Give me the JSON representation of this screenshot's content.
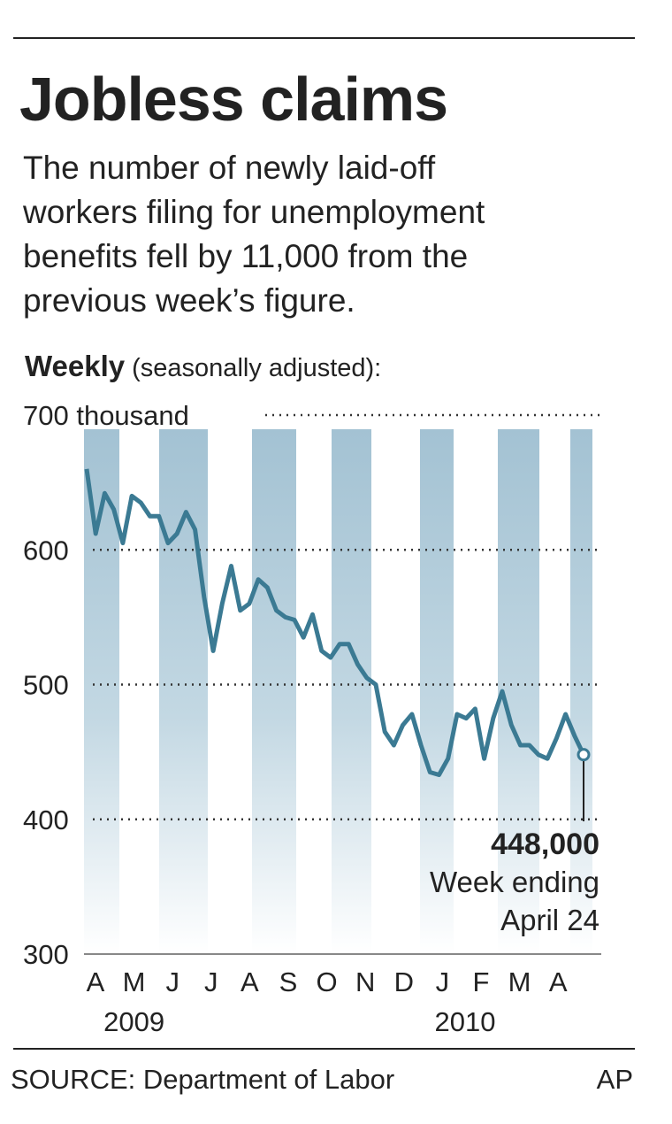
{
  "chart_data": {
    "type": "line",
    "title": "Jobless claims",
    "subtitle": [
      "The number of newly laid-off",
      "workers filing for unemployment",
      "benefits fell by 11,000 from the",
      "previous week’s figure."
    ],
    "ylabel": "Weekly",
    "ylabel_note": "(seasonally adjusted):",
    "months": [
      "A",
      "M",
      "J",
      "J",
      "A",
      "S",
      "O",
      "N",
      "D",
      "J",
      "F",
      "M",
      "A"
    ],
    "years": [
      "2009",
      "2010"
    ],
    "color": "#3b7a93",
    "values": [
      660,
      612,
      642,
      630,
      605,
      640,
      635,
      625,
      625,
      605,
      612,
      628,
      615,
      565,
      525,
      560,
      588,
      555,
      560,
      578,
      572,
      555,
      550,
      548,
      535,
      552,
      525,
      520,
      530,
      530,
      515,
      505,
      500,
      465,
      455,
      470,
      478,
      455,
      435,
      433,
      445,
      478,
      475,
      482,
      445,
      475,
      495,
      470,
      455,
      455,
      448,
      445,
      460,
      478,
      462,
      448
    ],
    "ylim": [
      300,
      700
    ],
    "yticks": [
      300,
      400,
      500,
      600,
      {
        "value": 700,
        "label": "700 thousand"
      }
    ],
    "grid": true,
    "annotation": [
      "448,000",
      "Week ending",
      "April 24"
    ],
    "source": "SOURCE: Department of Labor",
    "credit": "AP"
  }
}
